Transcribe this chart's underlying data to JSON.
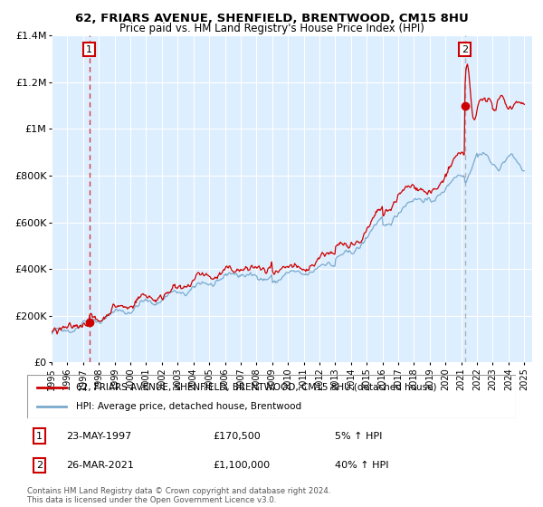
{
  "title1": "62, FRIARS AVENUE, SHENFIELD, BRENTWOOD, CM15 8HU",
  "title2": "Price paid vs. HM Land Registry's House Price Index (HPI)",
  "ylim": [
    0,
    1400000
  ],
  "yticks": [
    0,
    200000,
    400000,
    600000,
    800000,
    1000000,
    1200000,
    1400000
  ],
  "xmin": 1995.0,
  "xmax": 2025.5,
  "xticks": [
    1995,
    1996,
    1997,
    1998,
    1999,
    2000,
    2001,
    2002,
    2003,
    2004,
    2005,
    2006,
    2007,
    2008,
    2009,
    2010,
    2011,
    2012,
    2013,
    2014,
    2015,
    2016,
    2017,
    2018,
    2019,
    2020,
    2021,
    2022,
    2023,
    2024,
    2025
  ],
  "sale1_x": 1997.39,
  "sale1_y": 170500,
  "sale1_label": "1",
  "sale1_date": "23-MAY-1997",
  "sale1_price": "£170,500",
  "sale1_hpi": "5% ↑ HPI",
  "sale2_x": 2021.23,
  "sale2_y": 1100000,
  "sale2_label": "2",
  "sale2_date": "26-MAR-2021",
  "sale2_price": "£1,100,000",
  "sale2_hpi": "40% ↑ HPI",
  "line_color_house": "#cc0000",
  "line_color_hpi": "#7aaacc",
  "background_color": "#ddeeff",
  "grid_color": "#ffffff",
  "legend_label1": "62, FRIARS AVENUE, SHENFIELD, BRENTWOOD, CM15 8HU (detached house)",
  "legend_label2": "HPI: Average price, detached house, Brentwood",
  "footer": "Contains HM Land Registry data © Crown copyright and database right 2024.\nThis data is licensed under the Open Government Licence v3.0."
}
